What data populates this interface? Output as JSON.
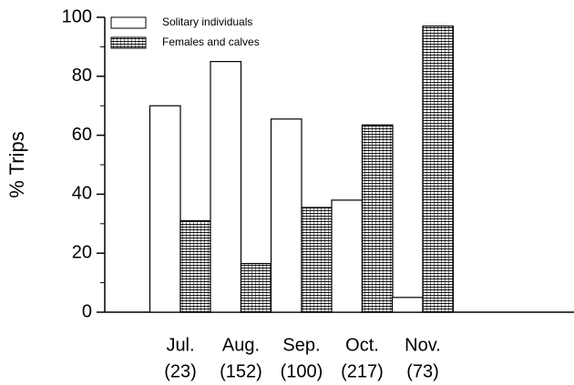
{
  "chart_data": {
    "type": "bar",
    "y_label": "% Trips",
    "categories": [
      "Jul.",
      "Aug.",
      "Sep.",
      "Oct.",
      "Nov."
    ],
    "category_counts": [
      "(23)",
      "(152)",
      "(100)",
      "(217)",
      "(73)"
    ],
    "series": [
      {
        "name": "Solitary individuals",
        "color": "#ffffff",
        "pattern": "none",
        "values": [
          70,
          85,
          65.5,
          38,
          5
        ]
      },
      {
        "name": "Females and calves",
        "color": "#ffffff",
        "pattern": "grid",
        "values": [
          31,
          16.5,
          35.5,
          63.5,
          97
        ]
      }
    ],
    "ylim": [
      0,
      100
    ],
    "yticks": [
      0,
      20,
      40,
      60,
      80,
      100
    ],
    "yminorticks": [
      10,
      30,
      50,
      70,
      90
    ],
    "grid": false,
    "legend": "top-left"
  }
}
